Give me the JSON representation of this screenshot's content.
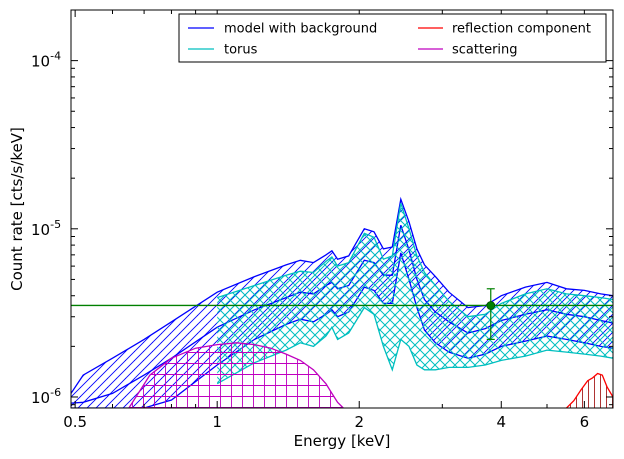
{
  "chart_data": {
    "type": "area",
    "title": "",
    "xlabel": "Energy [keV]",
    "ylabel": "Count rate [cts/s/keV]",
    "xscale": "log",
    "yscale": "log",
    "xlim": [
      0.49,
      6.9
    ],
    "ylim": [
      8.6e-07,
      0.0002
    ],
    "grid": false,
    "legend_position": "top-right",
    "x_ticks": [
      {
        "value": 0.5,
        "label": "0.5"
      },
      {
        "value": 1,
        "label": "1"
      },
      {
        "value": 2,
        "label": "2"
      },
      {
        "value": 4,
        "label": "4"
      },
      {
        "value": 6,
        "label": "6"
      }
    ],
    "y_ticks": [
      {
        "value": 1e-06,
        "base": "10",
        "exp": "-6"
      },
      {
        "value": 1e-05,
        "base": "10",
        "exp": "-5"
      },
      {
        "value": 0.0001,
        "base": "10",
        "exp": "-4"
      }
    ],
    "series": [
      {
        "name": "model with background",
        "color": "#0000ff",
        "hatch": "diagonal",
        "x": [
          0.49,
          0.52,
          0.6,
          0.7,
          0.8,
          1.0,
          1.2,
          1.4,
          1.5,
          1.6,
          1.7,
          1.75,
          1.8,
          1.9,
          2.05,
          2.15,
          2.25,
          2.35,
          2.45,
          2.55,
          2.65,
          2.75,
          2.9,
          3.1,
          3.4,
          3.7,
          4.0,
          4.5,
          5.0,
          5.5,
          6.0,
          6.5,
          6.9
        ],
        "upper": [
          1.05e-06,
          1.35e-06,
          1.7e-06,
          2.2e-06,
          2.8e-06,
          4.2e-06,
          5.2e-06,
          6.1e-06,
          6.5e-06,
          6.3e-06,
          7e-06,
          7.4e-06,
          6.6e-06,
          6.9e-06,
          1e-05,
          9.6e-06,
          7.6e-06,
          7.8e-06,
          1.5e-05,
          1.1e-05,
          7.6e-06,
          6.1e-06,
          5.2e-06,
          4.2e-06,
          3.4e-06,
          3.5e-06,
          4e-06,
          4.5e-06,
          4.8e-06,
          4.4e-06,
          4.3e-06,
          4.1e-06,
          4e-06
        ],
        "middle": [
          9.2e-07,
          9.3e-07,
          1.05e-06,
          1.35e-06,
          1.7e-06,
          2.6e-06,
          3.3e-06,
          3.9e-06,
          4.2e-06,
          4.1e-06,
          4.6e-06,
          4.8e-06,
          4.4e-06,
          4.6e-06,
          6.5e-06,
          6.3e-06,
          5.3e-06,
          5.3e-06,
          1.05e-05,
          7.5e-06,
          5e-06,
          3.8e-06,
          3.2e-06,
          2.8e-06,
          2.4e-06,
          2.55e-06,
          2.85e-06,
          3.1e-06,
          3.3e-06,
          3.1e-06,
          3e-06,
          2.85e-06,
          2.75e-06
        ],
        "lower": [
          8.6e-07,
          8.6e-07,
          8.6e-07,
          8.6e-07,
          9.6e-07,
          1.55e-06,
          2.2e-06,
          2.7e-06,
          2.9e-06,
          2.8e-06,
          3.1e-06,
          3.3e-06,
          3e-06,
          3.2e-06,
          4.5e-06,
          4.3e-06,
          3.6e-06,
          3.6e-06,
          7.2e-06,
          5e-06,
          3.4e-06,
          2.5e-06,
          2.1e-06,
          1.85e-06,
          1.7e-06,
          1.8e-06,
          2e-06,
          2.15e-06,
          2.3e-06,
          2.2e-06,
          2.1e-06,
          2e-06,
          1.95e-06
        ]
      },
      {
        "name": "torus",
        "color": "#00bfbf",
        "hatch": "crosshatch",
        "x": [
          1.0,
          1.2,
          1.4,
          1.5,
          1.6,
          1.7,
          1.75,
          1.8,
          1.9,
          2.05,
          2.15,
          2.25,
          2.35,
          2.45,
          2.55,
          2.65,
          2.75,
          2.9,
          3.1,
          3.4,
          3.7,
          4.0,
          4.5,
          5.0,
          5.5,
          6.0,
          6.5,
          6.9
        ],
        "upper": [
          3.9e-06,
          4.6e-06,
          5.3e-06,
          5.6e-06,
          5.5e-06,
          6.4e-06,
          6.8e-06,
          6e-06,
          6.3e-06,
          9.4e-06,
          8.9e-06,
          6.6e-06,
          6.9e-06,
          1.42e-05,
          1e-05,
          6.9e-06,
          5.5e-06,
          4.6e-06,
          3.7e-06,
          3e-06,
          3.1e-06,
          3.6e-06,
          4.1e-06,
          4.4e-06,
          4.1e-06,
          4e-06,
          3.9e-06,
          3.8e-06
        ],
        "lower": [
          1.2e-06,
          1.6e-06,
          1.9e-06,
          2.1e-06,
          2e-06,
          2.3e-06,
          2.6e-06,
          2.2e-06,
          2.4e-06,
          3.4e-06,
          3.1e-06,
          2e-06,
          1.45e-06,
          2.2e-06,
          2e-06,
          1.55e-06,
          1.45e-06,
          1.45e-06,
          1.5e-06,
          1.5e-06,
          1.55e-06,
          1.65e-06,
          1.75e-06,
          1.9e-06,
          1.85e-06,
          1.8e-06,
          1.75e-06,
          1.7e-06
        ]
      },
      {
        "name": "reflection component",
        "color": "#ff0000",
        "hatch": "vertical",
        "x": [
          5.5,
          5.7,
          5.9,
          6.1,
          6.25,
          6.4,
          6.55,
          6.7,
          6.9
        ],
        "upper": [
          8.6e-07,
          9.5e-07,
          1.1e-06,
          1.25e-06,
          1.3e-06,
          1.38e-06,
          1.35e-06,
          1.15e-06,
          1e-06
        ],
        "lower": [
          8.6e-07,
          8.6e-07,
          8.6e-07,
          8.6e-07,
          8.6e-07,
          8.6e-07,
          8.6e-07,
          8.6e-07,
          8.6e-07
        ]
      },
      {
        "name": "scattering",
        "color": "#bf00bf",
        "hatch": "grid",
        "x": [
          0.65,
          0.72,
          0.8,
          0.9,
          1.0,
          1.1,
          1.2,
          1.3,
          1.4,
          1.5,
          1.6,
          1.7,
          1.75,
          1.8,
          1.85
        ],
        "upper": [
          8.6e-07,
          1.35e-06,
          1.7e-06,
          1.95e-06,
          2.05e-06,
          2.1e-06,
          2.05e-06,
          1.95e-06,
          1.8e-06,
          1.65e-06,
          1.45e-06,
          1.2e-06,
          1.05e-06,
          9.3e-07,
          8.6e-07
        ],
        "lower": [
          8.6e-07,
          8.6e-07,
          8.6e-07,
          8.6e-07,
          8.6e-07,
          8.6e-07,
          8.6e-07,
          8.6e-07,
          8.6e-07,
          8.6e-07,
          8.6e-07,
          8.6e-07,
          8.6e-07,
          8.6e-07,
          8.6e-07
        ]
      }
    ],
    "reference_line": {
      "y": 3.5e-06,
      "color": "#008000"
    },
    "data_point": {
      "x": 3.8,
      "y": 3.5e-06,
      "y_low": 2.2e-06,
      "y_high": 4.4e-06,
      "color": "#008000"
    }
  }
}
